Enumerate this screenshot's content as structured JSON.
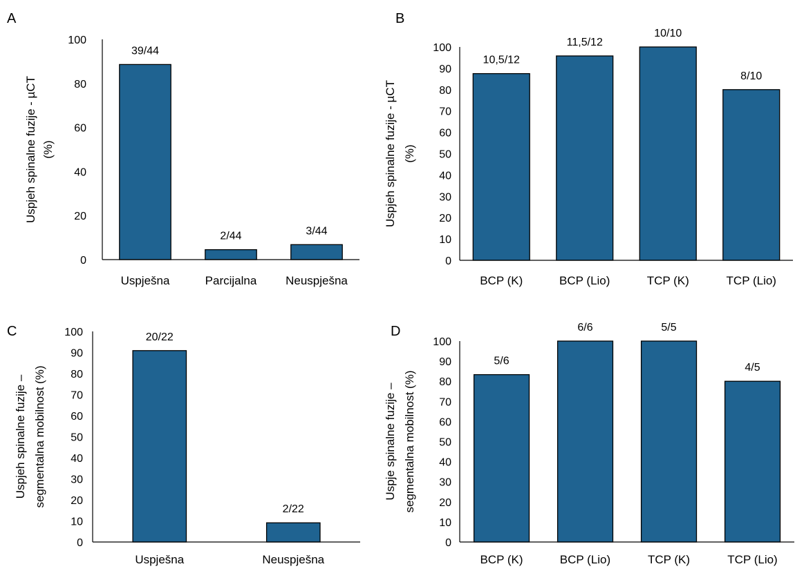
{
  "colors": {
    "bar": "#1F6391",
    "bar_edge": "#000000",
    "axis": "#000000",
    "text": "#000000"
  },
  "chart_data": [
    {
      "panel": "A",
      "type": "bar",
      "ylabel": "Uspjeh spinalne fuzije - µCT (%)",
      "ylabel_lines": [
        "Uspjeh spinalne fuzije - µCT",
        "(%)"
      ],
      "xlabel": "",
      "categories": [
        "Uspješna",
        "Parcijalna",
        "Neuspješna"
      ],
      "values": [
        88.6,
        4.5,
        6.8
      ],
      "data_labels": [
        "39/44",
        "2/44",
        "3/44"
      ],
      "ylim": [
        0,
        100
      ],
      "yticks": [
        0,
        20,
        40,
        60,
        80,
        100
      ],
      "grid": false
    },
    {
      "panel": "B",
      "type": "bar",
      "ylabel": "Uspjeh spinalne fuzije - µCT (%)",
      "ylabel_lines": [
        "Uspjeh spinalne fuzije - µCT",
        "(%)"
      ],
      "xlabel": "",
      "categories": [
        "BCP (K)",
        "BCP (Lio)",
        "TCP (K)",
        "TCP (Lio)"
      ],
      "values": [
        87.5,
        95.8,
        100,
        80
      ],
      "data_labels": [
        "10,5/12",
        "11,5/12",
        "10/10",
        "8/10"
      ],
      "ylim": [
        0,
        100
      ],
      "yticks": [
        0,
        10,
        20,
        30,
        40,
        50,
        60,
        70,
        80,
        90,
        100
      ],
      "grid": false
    },
    {
      "panel": "C",
      "type": "bar",
      "ylabel": "Uspjeh spinalne fuzije – segmentalna mobilnost (%)",
      "ylabel_lines": [
        "Uspjeh spinalne fuzije –",
        "segmentalna mobilnost (%)"
      ],
      "xlabel": "",
      "categories": [
        "Uspješna",
        "Neuspješna"
      ],
      "values": [
        90.9,
        9.1
      ],
      "data_labels": [
        "20/22",
        "2/22"
      ],
      "ylim": [
        0,
        100
      ],
      "yticks": [
        0,
        10,
        20,
        30,
        40,
        50,
        60,
        70,
        80,
        90,
        100
      ],
      "grid": false
    },
    {
      "panel": "D",
      "type": "bar",
      "ylabel": "Uspje spinalne fuzije – segmentalna mobilnost (%)",
      "ylabel_lines": [
        "Uspje spinalne fuzije –",
        "segmentalna mobilnost (%)"
      ],
      "xlabel": "",
      "categories": [
        "BCP (K)",
        "BCP (Lio)",
        "TCP (K)",
        "TCP (Lio)"
      ],
      "values": [
        83.3,
        100,
        100,
        80
      ],
      "data_labels": [
        "5/6",
        "6/6",
        "5/5",
        "4/5"
      ],
      "ylim": [
        0,
        100
      ],
      "yticks": [
        0,
        10,
        20,
        30,
        40,
        50,
        60,
        70,
        80,
        90,
        100
      ],
      "grid": false
    }
  ]
}
